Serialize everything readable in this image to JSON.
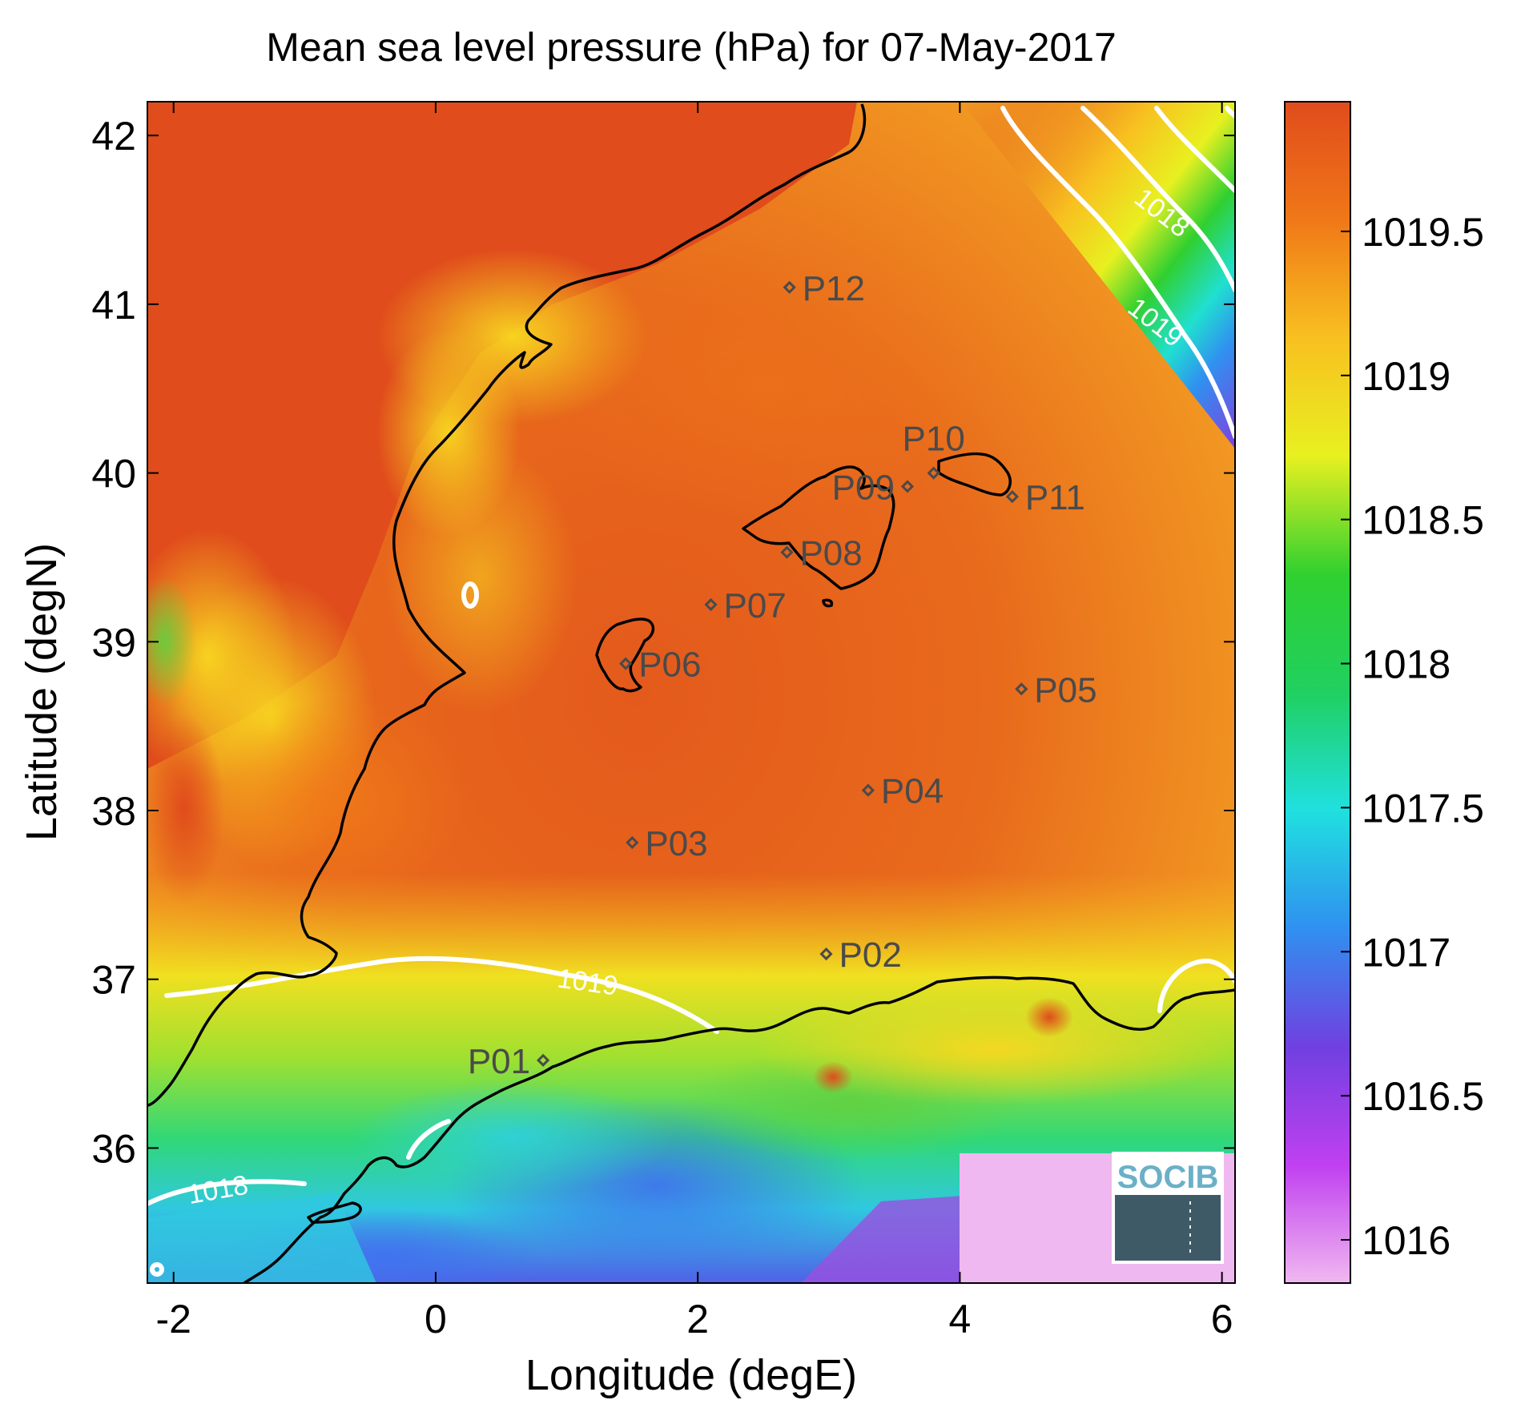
{
  "title": "Mean sea level pressure (hPa) for 07-May-2017",
  "x_axis": {
    "label": "Longitude (degE)",
    "range": [
      -2.2,
      6.1
    ],
    "ticks": [
      {
        "value": -2,
        "label": "-2"
      },
      {
        "value": 0,
        "label": "0"
      },
      {
        "value": 2,
        "label": "2"
      },
      {
        "value": 4,
        "label": "4"
      },
      {
        "value": 6,
        "label": "6"
      }
    ]
  },
  "y_axis": {
    "label": "Latitude (degN)",
    "range": [
      35.2,
      42.2
    ],
    "ticks": [
      {
        "value": 36,
        "label": "36"
      },
      {
        "value": 37,
        "label": "37"
      },
      {
        "value": 38,
        "label": "38"
      },
      {
        "value": 39,
        "label": "39"
      },
      {
        "value": 40,
        "label": "40"
      },
      {
        "value": 41,
        "label": "41"
      },
      {
        "value": 42,
        "label": "42"
      }
    ]
  },
  "colorbar": {
    "range": [
      1015.85,
      1019.95
    ],
    "ticks": [
      {
        "value": 1016,
        "label": "1016"
      },
      {
        "value": 1016.5,
        "label": "1016.5"
      },
      {
        "value": 1017,
        "label": "1017"
      },
      {
        "value": 1017.5,
        "label": "1017.5"
      },
      {
        "value": 1018,
        "label": "1018"
      },
      {
        "value": 1018.5,
        "label": "1018.5"
      },
      {
        "value": 1019,
        "label": "1019"
      },
      {
        "value": 1019.5,
        "label": "1019.5"
      }
    ],
    "colors": [
      "#f0b8f0",
      "#c040f0",
      "#7040e0",
      "#3090f0",
      "#20e0e0",
      "#20d060",
      "#30d030",
      "#e8f020",
      "#f8c020",
      "#f07818",
      "#e04c1c"
    ]
  },
  "stations": [
    {
      "name": "P01",
      "lon": 0.82,
      "lat": 36.52,
      "label_side": "left"
    },
    {
      "name": "P02",
      "lon": 2.98,
      "lat": 37.15,
      "label_side": "right"
    },
    {
      "name": "P03",
      "lon": 1.5,
      "lat": 37.81,
      "label_side": "right"
    },
    {
      "name": "P04",
      "lon": 3.3,
      "lat": 38.12,
      "label_side": "right"
    },
    {
      "name": "P05",
      "lon": 4.47,
      "lat": 38.72,
      "label_side": "right"
    },
    {
      "name": "P06",
      "lon": 1.45,
      "lat": 38.87,
      "label_side": "right"
    },
    {
      "name": "P07",
      "lon": 2.1,
      "lat": 39.22,
      "label_side": "right"
    },
    {
      "name": "P08",
      "lon": 2.68,
      "lat": 39.53,
      "label_side": "right"
    },
    {
      "name": "P09",
      "lon": 3.6,
      "lat": 39.92,
      "label_side": "left"
    },
    {
      "name": "P10",
      "lon": 3.8,
      "lat": 40.0,
      "label_side": "above"
    },
    {
      "name": "P11",
      "lon": 4.4,
      "lat": 39.86,
      "label_side": "right"
    },
    {
      "name": "P12",
      "lon": 2.7,
      "lat": 41.1,
      "label_side": "right"
    }
  ],
  "contour_labels": [
    {
      "text": "1018",
      "lon": 5.5,
      "lat": 41.5,
      "angle": 38
    },
    {
      "text": "1019",
      "lon": 5.45,
      "lat": 40.85,
      "angle": 38
    },
    {
      "text": "1019",
      "lon": 1.15,
      "lat": 36.93,
      "angle": 8
    },
    {
      "text": "1018",
      "lon": -1.65,
      "lat": 35.7,
      "angle": -10
    }
  ],
  "logo": {
    "text": "SOCIB"
  },
  "colors": {
    "coastline": "#000000",
    "contour": "#ffffff",
    "station": "#4a4a4a",
    "high_pressure": "#e04c1c",
    "mid_pressure": "#f8a020"
  }
}
